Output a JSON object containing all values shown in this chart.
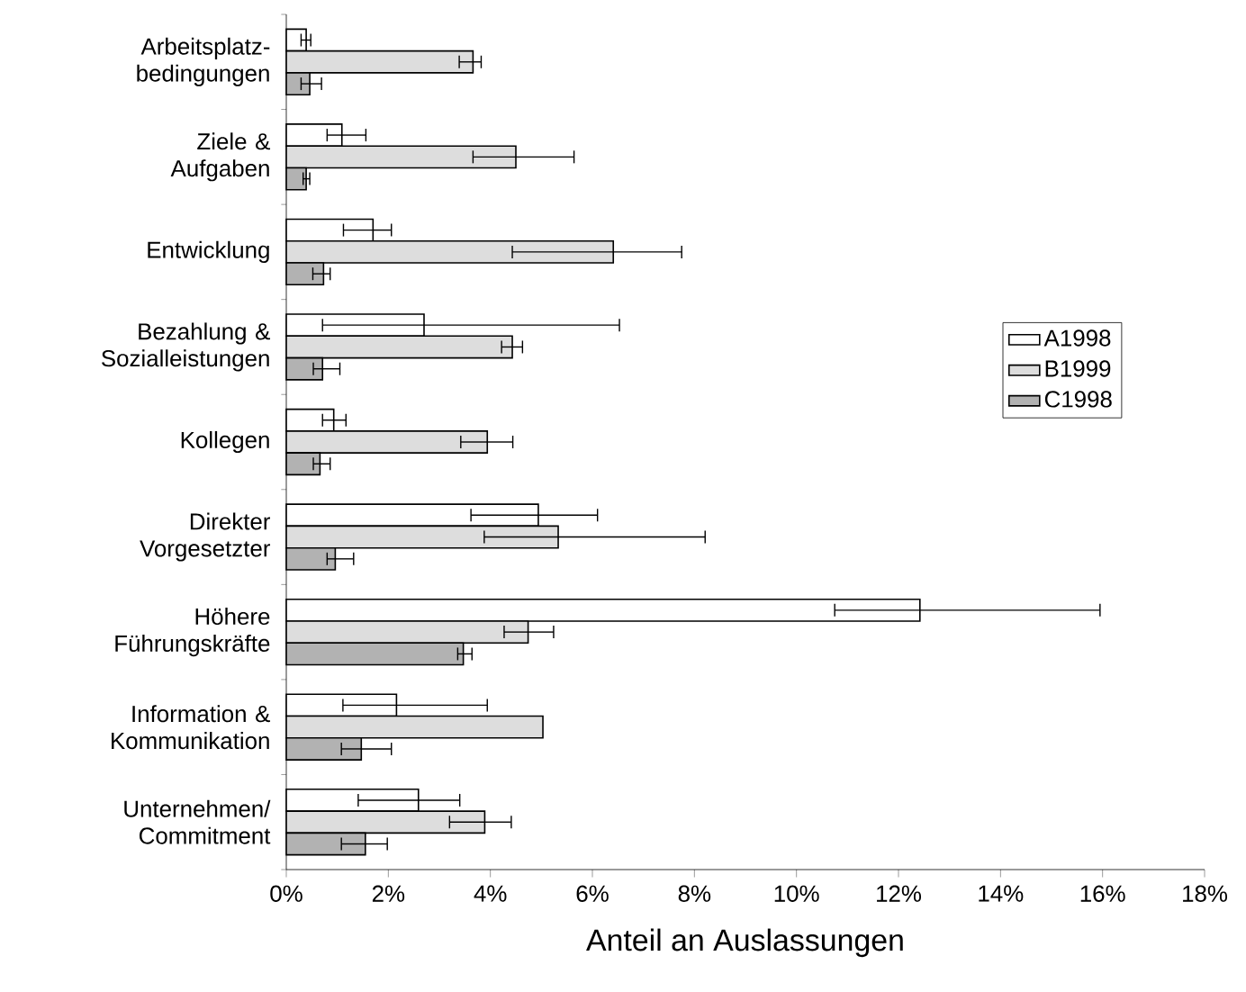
{
  "chart_data": {
    "type": "bar",
    "orientation": "horizontal",
    "xlabel": "Anteil an Auslassungen",
    "categories": [
      "Arbeitsplatz-bedingungen",
      "Ziele & Aufgaben",
      "Entwicklung",
      "Bezahlung & Sozialleistungen",
      "Kollegen",
      "Direkter Vorgesetzter",
      "Höhere Führungskräfte",
      "Information & Kommunikation",
      "Unternehmen/ Commitment"
    ],
    "series": [
      {
        "name": "A1998",
        "color": "#ffffff",
        "values": [
          0.39,
          1.09,
          1.7,
          2.7,
          0.93,
          4.94,
          12.42,
          2.16,
          2.59
        ],
        "errors": [
          [
            0.29,
            0.48
          ],
          [
            0.8,
            1.56
          ],
          [
            1.12,
            2.06
          ],
          [
            0.71,
            6.53
          ],
          [
            0.71,
            1.17
          ],
          [
            3.62,
            6.1
          ],
          [
            10.75,
            15.95
          ],
          [
            1.11,
            3.94
          ],
          [
            1.41,
            3.4
          ]
        ]
      },
      {
        "name": "B1999",
        "color": "#dddddd",
        "values": [
          3.66,
          4.5,
          6.41,
          4.43,
          3.94,
          5.33,
          4.74,
          5.03,
          3.89
        ],
        "errors": [
          [
            3.39,
            3.82
          ],
          [
            3.66,
            5.64
          ],
          [
            4.43,
            7.75
          ],
          [
            4.22,
            4.63
          ],
          [
            3.42,
            4.44
          ],
          [
            3.88,
            8.21
          ],
          [
            4.27,
            5.24
          ],
          null,
          [
            3.2,
            4.41
          ]
        ]
      },
      {
        "name": "C1998",
        "color": "#b2b2b2",
        "values": [
          0.46,
          0.39,
          0.73,
          0.71,
          0.66,
          0.96,
          3.47,
          1.47,
          1.55
        ],
        "errors": [
          [
            0.29,
            0.69
          ],
          [
            0.33,
            0.46
          ],
          [
            0.52,
            0.86
          ],
          [
            0.53,
            1.05
          ],
          [
            0.53,
            0.86
          ],
          [
            0.8,
            1.32
          ],
          [
            3.36,
            3.64
          ],
          [
            1.08,
            2.06
          ],
          [
            1.08,
            1.98
          ]
        ]
      }
    ],
    "xlim": [
      0,
      18
    ],
    "xticks": [
      {
        "value": 0,
        "label": "0%"
      },
      {
        "value": 2,
        "label": "2%"
      },
      {
        "value": 4,
        "label": "4%"
      },
      {
        "value": 6,
        "label": "6%"
      },
      {
        "value": 8,
        "label": "8%"
      },
      {
        "value": 10,
        "label": "10%"
      },
      {
        "value": 12,
        "label": "12%"
      },
      {
        "value": 14,
        "label": "14%"
      },
      {
        "value": 16,
        "label": "16%"
      },
      {
        "value": 18,
        "label": "18%"
      }
    ],
    "legend": "right",
    "grid": false
  }
}
